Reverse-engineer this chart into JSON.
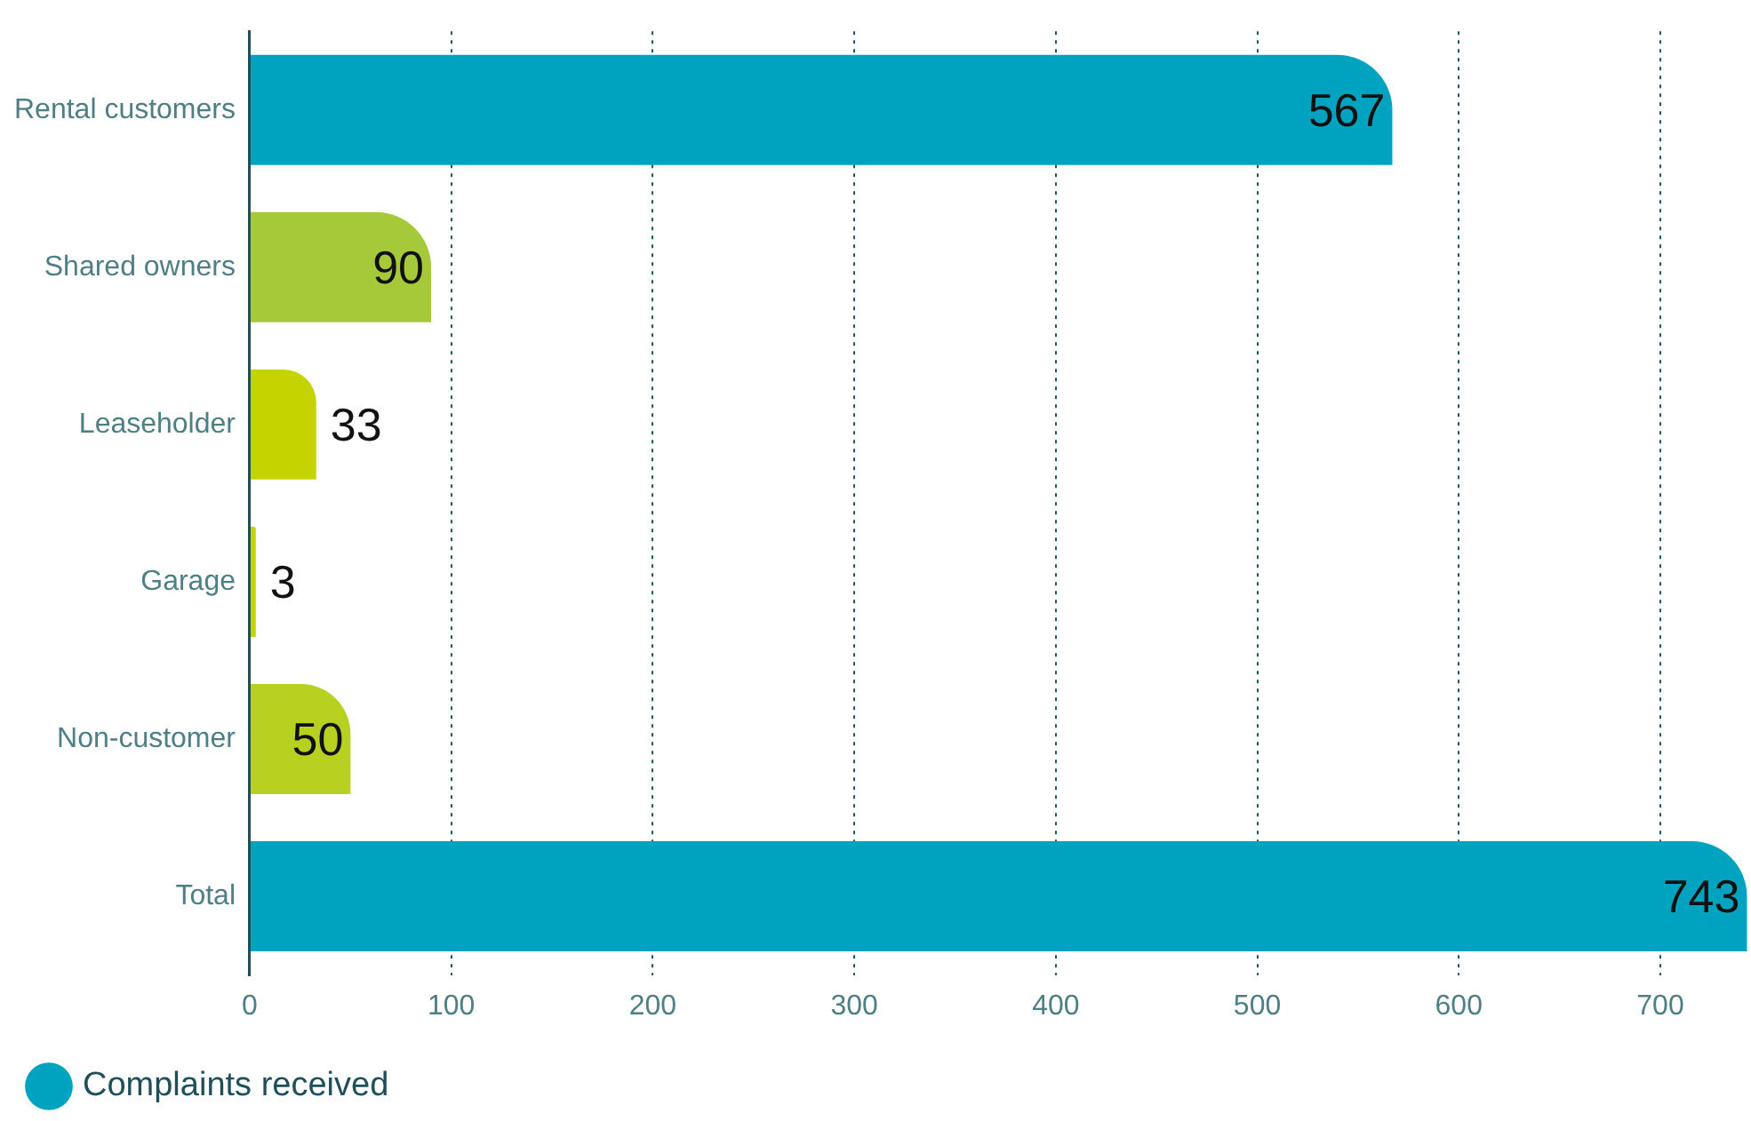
{
  "chart_data": {
    "type": "bar",
    "orientation": "horizontal",
    "categories": [
      "Rental customers",
      "Shared owners",
      "Leaseholder",
      "Garage",
      "Non-customer",
      "Total"
    ],
    "series": [
      {
        "name": "Complaints received",
        "color": "#00a3bf",
        "colors": [
          "#00a3bf",
          "#a6c93a",
          "#c5d400",
          "#c5d400",
          "#b8d020",
          "#00a3bf"
        ],
        "values": [
          567,
          90,
          33,
          3,
          50,
          743
        ]
      }
    ],
    "xlim": [
      0,
      745
    ],
    "xticks": [
      0,
      100,
      200,
      300,
      400,
      500,
      600,
      700
    ],
    "grid": "x",
    "data_labels": true,
    "legend": "bottom left"
  }
}
